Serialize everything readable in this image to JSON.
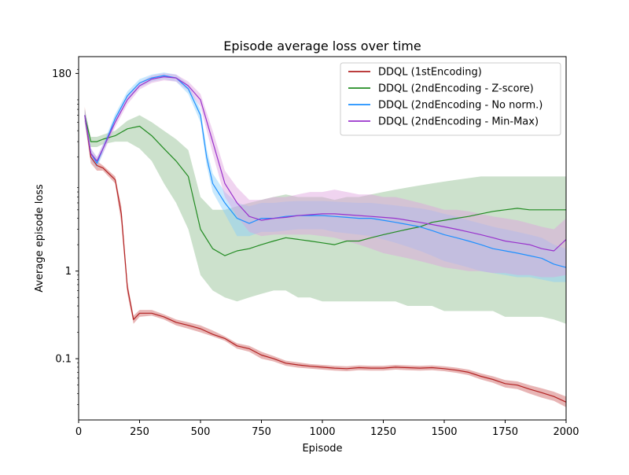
{
  "chart_data": {
    "type": "line",
    "title": "Episode average loss over time",
    "xlabel": "Episode",
    "ylabel": "Average episode loss",
    "xlim": [
      0,
      2000
    ],
    "ylim": [
      0.02,
      280
    ],
    "y_scale": "log",
    "x_ticks": [
      0,
      250,
      500,
      750,
      1000,
      1250,
      1500,
      1750,
      2000
    ],
    "x_tick_labels": [
      "0",
      "250",
      "500",
      "750",
      "1000",
      "1250",
      "1500",
      "1750",
      "2000"
    ],
    "y_ticks": [
      0.1,
      1,
      180
    ],
    "y_tick_labels": [
      "0.1",
      "1",
      "180"
    ],
    "grid": false,
    "legend_position": "top-right",
    "series": [
      {
        "name": "DDQL (1stEncoding)",
        "color": "#b22222",
        "band_color": "#cd5c5c",
        "x": [
          25,
          50,
          75,
          100,
          150,
          175,
          200,
          225,
          250,
          300,
          350,
          400,
          450,
          500,
          550,
          600,
          650,
          700,
          750,
          800,
          850,
          900,
          950,
          1000,
          1050,
          1100,
          1150,
          1200,
          1250,
          1300,
          1350,
          1400,
          1450,
          1500,
          1550,
          1600,
          1650,
          1700,
          1750,
          1800,
          1850,
          1900,
          1950,
          2000
        ],
        "y": [
          60,
          20,
          16,
          15,
          11,
          4.5,
          0.65,
          0.28,
          0.33,
          0.33,
          0.3,
          0.26,
          0.24,
          0.22,
          0.19,
          0.17,
          0.14,
          0.13,
          0.11,
          0.1,
          0.089,
          0.085,
          0.082,
          0.08,
          0.078,
          0.077,
          0.079,
          0.078,
          0.078,
          0.08,
          0.079,
          0.078,
          0.079,
          0.077,
          0.074,
          0.07,
          0.063,
          0.058,
          0.052,
          0.05,
          0.045,
          0.041,
          0.037,
          0.032
        ],
        "lower": [
          50,
          17,
          14,
          14,
          10,
          3.5,
          0.55,
          0.25,
          0.3,
          0.31,
          0.28,
          0.24,
          0.22,
          0.2,
          0.18,
          0.16,
          0.13,
          0.12,
          0.1,
          0.093,
          0.083,
          0.079,
          0.077,
          0.075,
          0.073,
          0.072,
          0.074,
          0.073,
          0.073,
          0.075,
          0.074,
          0.073,
          0.074,
          0.072,
          0.069,
          0.065,
          0.058,
          0.053,
          0.047,
          0.045,
          0.04,
          0.036,
          0.033,
          0.028
        ],
        "upper": [
          75,
          23,
          18,
          16,
          12,
          5.5,
          0.75,
          0.31,
          0.36,
          0.36,
          0.32,
          0.28,
          0.26,
          0.24,
          0.21,
          0.18,
          0.15,
          0.14,
          0.12,
          0.107,
          0.095,
          0.091,
          0.087,
          0.085,
          0.083,
          0.082,
          0.084,
          0.083,
          0.083,
          0.085,
          0.084,
          0.083,
          0.084,
          0.082,
          0.079,
          0.075,
          0.068,
          0.063,
          0.057,
          0.055,
          0.05,
          0.046,
          0.042,
          0.037
        ]
      },
      {
        "name": "DDQL (2ndEncoding - Z-score)",
        "color": "#228b22",
        "band_color": "#8fbc8f",
        "x": [
          25,
          50,
          75,
          100,
          150,
          200,
          250,
          300,
          350,
          400,
          450,
          500,
          550,
          600,
          650,
          700,
          750,
          800,
          850,
          900,
          950,
          1000,
          1050,
          1100,
          1150,
          1200,
          1250,
          1300,
          1350,
          1400,
          1450,
          1500,
          1550,
          1600,
          1650,
          1700,
          1750,
          1800,
          1850,
          1900,
          1950,
          2000
        ],
        "y": [
          60,
          30,
          30,
          32,
          35,
          42,
          45,
          35,
          25,
          18,
          12,
          3,
          1.8,
          1.5,
          1.7,
          1.8,
          2.0,
          2.2,
          2.4,
          2.3,
          2.2,
          2.1,
          2.0,
          2.2,
          2.2,
          2.4,
          2.6,
          2.8,
          3.0,
          3.2,
          3.6,
          3.8,
          4.0,
          4.2,
          4.5,
          4.8,
          5.0,
          5.2,
          5.0,
          5.0,
          5.0,
          5.0
        ],
        "lower": [
          50,
          26,
          26,
          28,
          30,
          30,
          25,
          18,
          10,
          6,
          3,
          0.9,
          0.6,
          0.5,
          0.45,
          0.5,
          0.55,
          0.6,
          0.6,
          0.5,
          0.5,
          0.45,
          0.45,
          0.45,
          0.45,
          0.45,
          0.45,
          0.45,
          0.4,
          0.4,
          0.4,
          0.35,
          0.35,
          0.35,
          0.35,
          0.35,
          0.3,
          0.3,
          0.3,
          0.3,
          0.28,
          0.25
        ],
        "upper": [
          70,
          34,
          34,
          36,
          40,
          52,
          60,
          50,
          40,
          32,
          24,
          7,
          5,
          5,
          5.5,
          6,
          6.5,
          7,
          7.5,
          7,
          7,
          7,
          6.5,
          7,
          7,
          7.5,
          8,
          8.5,
          9,
          9.5,
          10,
          10.5,
          11,
          11.5,
          12,
          12,
          12,
          12,
          12,
          12,
          12,
          12
        ]
      },
      {
        "name": "DDQL (2ndEncoding - No norm.)",
        "color": "#1e90ff",
        "band_color": "#87cefa",
        "x": [
          25,
          50,
          75,
          100,
          150,
          200,
          250,
          300,
          350,
          400,
          450,
          500,
          525,
          550,
          600,
          650,
          700,
          750,
          800,
          850,
          900,
          950,
          1000,
          1050,
          1100,
          1150,
          1200,
          1250,
          1300,
          1350,
          1400,
          1450,
          1500,
          1550,
          1600,
          1650,
          1700,
          1750,
          1800,
          1850,
          1900,
          1950,
          2000
        ],
        "y": [
          60,
          22,
          17,
          25,
          55,
          100,
          140,
          160,
          170,
          160,
          120,
          60,
          20,
          10,
          6,
          4,
          3.5,
          4,
          4,
          4.2,
          4.3,
          4.3,
          4.3,
          4.2,
          4.1,
          4.0,
          4.0,
          3.8,
          3.6,
          3.4,
          3.2,
          2.9,
          2.6,
          2.4,
          2.2,
          2.0,
          1.8,
          1.7,
          1.6,
          1.5,
          1.4,
          1.2,
          1.1
        ],
        "lower": [
          50,
          19,
          15,
          22,
          48,
          88,
          125,
          145,
          155,
          145,
          105,
          50,
          16,
          8,
          4.5,
          2.5,
          2.5,
          2.8,
          2.8,
          2.9,
          3.0,
          3.0,
          3.0,
          2.8,
          2.7,
          2.6,
          2.5,
          2.3,
          2.1,
          1.9,
          1.7,
          1.5,
          1.3,
          1.2,
          1.1,
          1.0,
          0.95,
          0.9,
          0.85,
          0.85,
          0.8,
          0.75,
          0.75
        ],
        "upper": [
          70,
          25,
          20,
          28,
          62,
          112,
          155,
          175,
          185,
          175,
          135,
          70,
          25,
          13,
          8,
          6,
          5.5,
          6,
          6,
          6.2,
          6.3,
          6.3,
          6.3,
          6.2,
          6.1,
          6.0,
          6.0,
          5.8,
          5.6,
          5.4,
          5.2,
          4.9,
          4.5,
          4.2,
          3.8,
          3.5,
          3.2,
          3.0,
          2.8,
          2.6,
          2.4,
          2.0,
          1.8
        ]
      },
      {
        "name": "DDQL (2ndEncoding - Min-Max)",
        "color": "#9932cc",
        "band_color": "#dda0dd",
        "x": [
          25,
          50,
          75,
          100,
          150,
          200,
          250,
          300,
          350,
          400,
          450,
          500,
          550,
          600,
          650,
          700,
          750,
          800,
          850,
          900,
          950,
          1000,
          1050,
          1100,
          1150,
          1200,
          1250,
          1300,
          1350,
          1400,
          1450,
          1500,
          1550,
          1600,
          1650,
          1700,
          1750,
          1800,
          1850,
          1900,
          1950,
          2000
        ],
        "y": [
          60,
          22,
          18,
          25,
          50,
          90,
          130,
          155,
          165,
          160,
          130,
          90,
          30,
          10,
          6,
          4.2,
          3.8,
          4.0,
          4.1,
          4.3,
          4.4,
          4.5,
          4.5,
          4.4,
          4.3,
          4.2,
          4.1,
          4.0,
          3.8,
          3.6,
          3.4,
          3.2,
          3.0,
          2.8,
          2.6,
          2.4,
          2.2,
          2.1,
          2.0,
          1.8,
          1.7,
          2.3
        ],
        "lower": [
          50,
          19,
          16,
          22,
          44,
          80,
          118,
          140,
          150,
          145,
          115,
          75,
          22,
          7,
          4.2,
          2.8,
          2.5,
          2.6,
          2.6,
          2.6,
          2.6,
          2.5,
          2.4,
          2.2,
          2.0,
          1.8,
          1.6,
          1.5,
          1.4,
          1.3,
          1.2,
          1.1,
          1.05,
          1.0,
          1.0,
          0.95,
          0.95,
          0.9,
          0.9,
          0.85,
          0.85,
          0.9
        ],
        "upper": [
          70,
          25,
          20,
          28,
          56,
          100,
          142,
          170,
          180,
          175,
          145,
          105,
          40,
          14,
          9,
          6.5,
          6.5,
          7,
          7,
          7.5,
          8,
          8,
          8.5,
          8,
          7.5,
          7.5,
          7,
          7,
          6.5,
          6,
          5.5,
          5,
          5,
          4.8,
          4.5,
          4.2,
          4.0,
          3.8,
          3.5,
          3.2,
          3.0,
          4.0
        ]
      }
    ]
  }
}
